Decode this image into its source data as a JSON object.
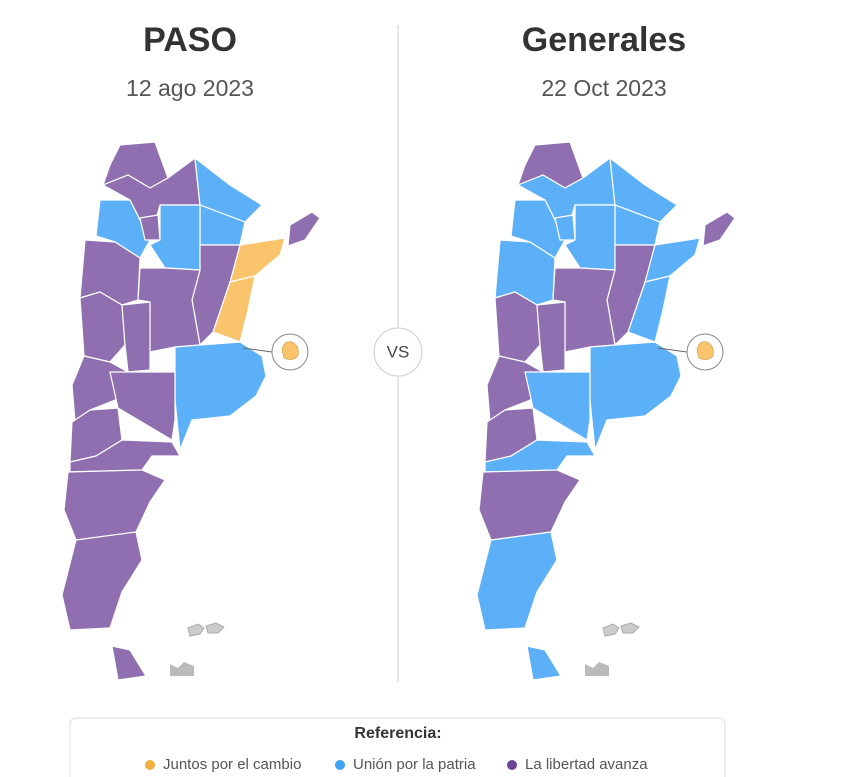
{
  "maps": [
    {
      "title": "PASO",
      "date": "12 ago 2023"
    },
    {
      "title": "Generales",
      "date": "22 Oct 2023"
    }
  ],
  "separator": "VS",
  "legend": {
    "title": "Referencia:",
    "items": [
      {
        "label": "Juntos por el cambio",
        "color": "#f2b03f"
      },
      {
        "label": "Unión por la patria",
        "color": "#3ea4f4"
      },
      {
        "label": "La libertad avanza",
        "color": "#6b4494"
      }
    ]
  }
}
